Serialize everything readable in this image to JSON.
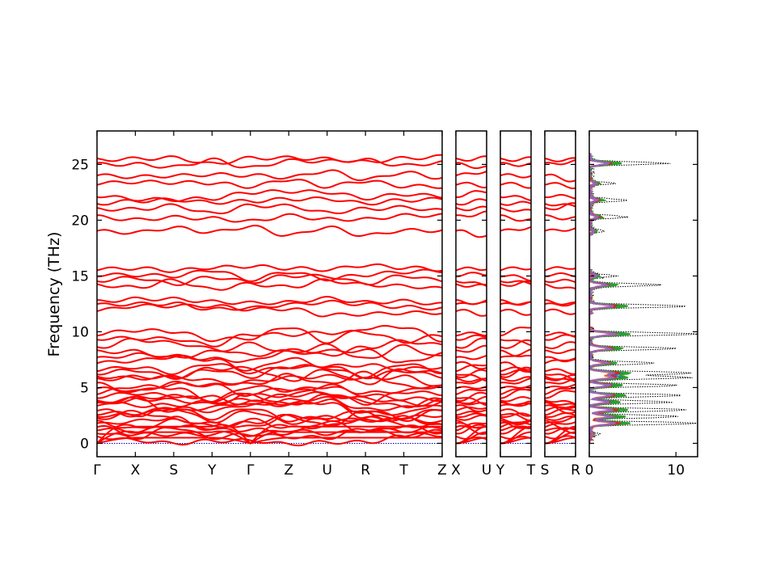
{
  "chart_data": [
    {
      "type": "line",
      "title": "",
      "xlabel": "",
      "ylabel": "Frequency (THz)",
      "ylim": [
        -1.2,
        28
      ],
      "yticks": [
        0,
        5,
        10,
        15,
        20,
        25
      ],
      "panels": [
        {
          "segments": [
            "Γ-X",
            "X-S",
            "S-Y",
            "Y-Γ",
            "Γ-Z",
            "Z-U",
            "U-R",
            "R-T",
            "T-Z"
          ],
          "tick_labels": [
            "Γ",
            "X",
            "S",
            "Y",
            "Γ",
            "Z",
            "U",
            "R",
            "T",
            "Z"
          ]
        },
        {
          "segments": [
            "X-U"
          ],
          "tick_labels": [
            "X",
            "U"
          ]
        },
        {
          "segments": [
            "Y-T"
          ],
          "tick_labels": [
            "Y",
            "T"
          ]
        },
        {
          "segments": [
            "S-R"
          ],
          "tick_labels": [
            "S",
            "R"
          ]
        }
      ],
      "bands_gamma_THz": [
        0,
        0,
        0,
        0.6,
        1.0,
        1.3,
        1.5,
        1.7,
        1.9,
        2.2,
        2.5,
        2.7,
        3.0,
        3.3,
        3.5,
        3.7,
        3.9,
        4.2,
        4.5,
        4.9,
        5.3,
        5.7,
        6.0,
        6.3,
        6.6,
        7.2,
        7.6,
        8.2,
        8.6,
        9.4,
        9.8,
        11.9,
        12.4,
        12.7,
        14.2,
        14.6,
        15.1,
        15.6,
        19.0,
        20.3,
        21.0,
        21.5,
        22.2,
        23.3,
        24.0,
        25.0,
        25.4
      ],
      "series": [
        {
          "name": "phonon bands",
          "color": "#ff0000"
        },
        {
          "name": "zero line",
          "color": "#0000cc"
        }
      ]
    },
    {
      "type": "line",
      "title": "",
      "xlabel": "",
      "ylabel": "",
      "xlim": [
        0,
        12.5
      ],
      "xticks": [
        0,
        10
      ],
      "ylim": [
        -1.2,
        28
      ],
      "total_dos_peaks": [
        {
          "freq": 0.8,
          "dos": 1.3
        },
        {
          "freq": 1.8,
          "dos": 12.0
        },
        {
          "freq": 2.4,
          "dos": 10.5
        },
        {
          "freq": 3.0,
          "dos": 11.5
        },
        {
          "freq": 3.7,
          "dos": 9.5
        },
        {
          "freq": 4.3,
          "dos": 11.0
        },
        {
          "freq": 5.2,
          "dos": 10.0
        },
        {
          "freq": 5.9,
          "dos": 11.5
        },
        {
          "freq": 6.3,
          "dos": 12.0
        },
        {
          "freq": 7.2,
          "dos": 8.0
        },
        {
          "freq": 8.5,
          "dos": 10.0
        },
        {
          "freq": 9.8,
          "dos": 12.2
        },
        {
          "freq": 12.3,
          "dos": 11.5
        },
        {
          "freq": 14.2,
          "dos": 8.2
        },
        {
          "freq": 15.0,
          "dos": 3.0
        },
        {
          "freq": 19.0,
          "dos": 2.0
        },
        {
          "freq": 20.3,
          "dos": 4.2
        },
        {
          "freq": 21.8,
          "dos": 4.0
        },
        {
          "freq": 23.3,
          "dos": 3.0
        },
        {
          "freq": 25.1,
          "dos": 9.2
        }
      ],
      "series": [
        {
          "name": "total",
          "color": "#000000",
          "style": "dotted"
        },
        {
          "name": "pdos-1",
          "color": "#1f77b4"
        },
        {
          "name": "pdos-2",
          "color": "#ff7f0e"
        },
        {
          "name": "pdos-3",
          "color": "#2ca02c"
        },
        {
          "name": "pdos-4",
          "color": "#d62728"
        },
        {
          "name": "pdos-5",
          "color": "#9467bd"
        }
      ]
    }
  ]
}
